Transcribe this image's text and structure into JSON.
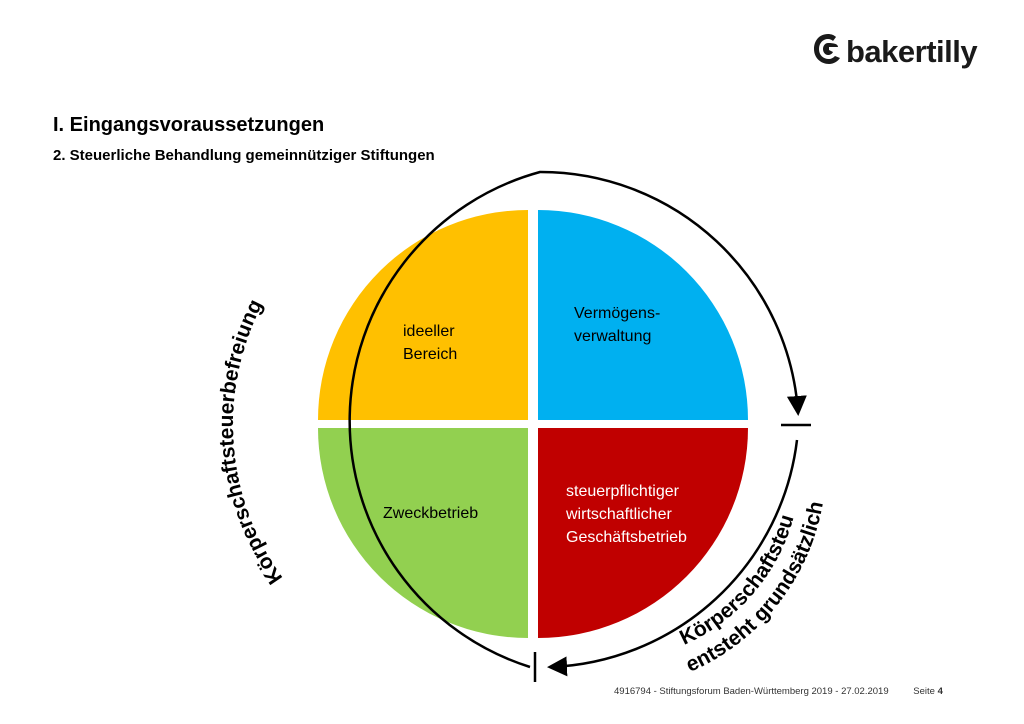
{
  "brand": {
    "name": "bakertilly"
  },
  "header": {
    "title": "I. Eingangsvoraussetzungen",
    "subtitle": "2. Steuerliche Behandlung gemeinnütziger Stiftungen"
  },
  "diagram": {
    "quadrants": [
      {
        "id": "ideell",
        "lines": [
          "ideeller",
          "Bereich"
        ],
        "color": "#FFC000"
      },
      {
        "id": "vermoegen",
        "lines": [
          "Vermögens-",
          "verwaltung"
        ],
        "color": "#00B0F0"
      },
      {
        "id": "zweck",
        "lines": [
          "Zweckbetrieb"
        ],
        "color": "#92D050"
      },
      {
        "id": "wirtschaft",
        "lines": [
          "steuerpflichtiger",
          "wirtschaftlicher",
          "Geschäftsbetrieb"
        ],
        "color": "#C00000"
      }
    ],
    "arc_left_label": "Körperschaftsteuerbefreiung",
    "arc_right_label_line1": "Körperschaftsteuer",
    "arc_right_label_line2": "entsteht grundsätzlich"
  },
  "footer": {
    "text": "4916794 - Stiftungsforum Baden-Württemberg 2019 - 27.02.2019",
    "page_prefix": "Seite",
    "page_number": "4"
  }
}
